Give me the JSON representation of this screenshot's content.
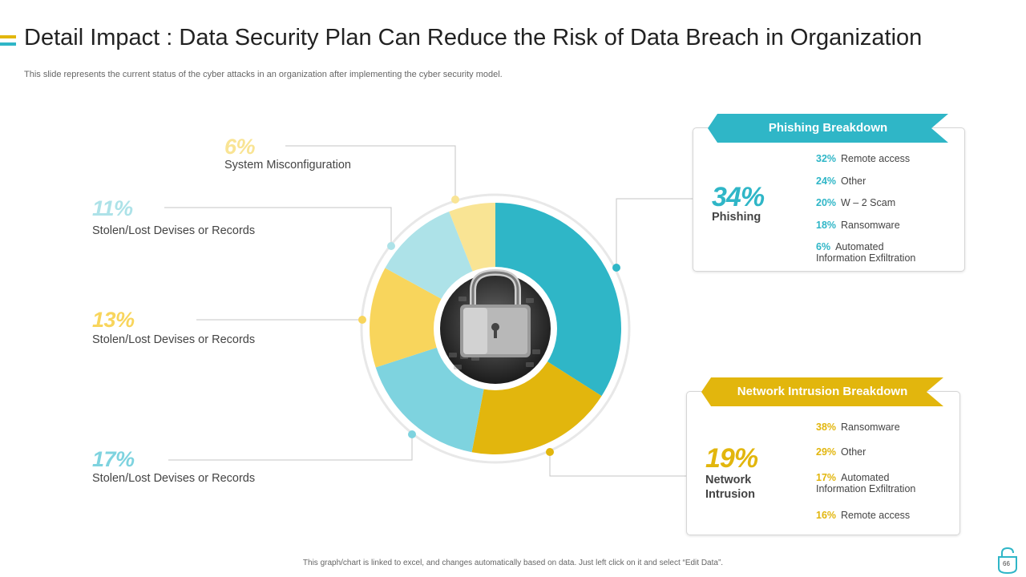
{
  "header": {
    "title": "Detail Impact : Data Security Plan Can Reduce the Risk of Data Breach in Organization",
    "subtitle": "This slide represents the current status of the cyber attacks in an organization after implementing the cyber security model."
  },
  "colors": {
    "teal": "#2fb6c7",
    "light_teal": "#7ed3df",
    "pale_teal": "#ade2e8",
    "gold": "#e2b60d",
    "yellow": "#f8d55c",
    "pale_yellow": "#f9e494"
  },
  "chart_data": {
    "type": "pie",
    "title": "",
    "slices": [
      {
        "label": "Phishing",
        "value": 34,
        "display": "34%",
        "color": "#2fb6c7"
      },
      {
        "label": "Network Intrusion",
        "value": 19,
        "display": "19%",
        "color": "#e2b60d"
      },
      {
        "label": "Stolen/Lost Devises or Records",
        "value": 17,
        "display": "17%",
        "color": "#7ed3df"
      },
      {
        "label": "Stolen/Lost Devises or Records",
        "value": 13,
        "display": "13%",
        "color": "#f8d55c"
      },
      {
        "label": "Stolen/Lost Devises or Records",
        "value": 11,
        "display": "11%",
        "color": "#ade2e8"
      },
      {
        "label": "System Misconfiguration",
        "value": 6,
        "display": "6%",
        "color": "#f9e494"
      }
    ]
  },
  "phishing_breakdown": {
    "title": "Phishing Breakdown",
    "percent": "34%",
    "label": "Phishing",
    "items": [
      {
        "value": "32%",
        "label": "Remote access"
      },
      {
        "value": "24%",
        "label": "Other"
      },
      {
        "value": "20%",
        "label": "W – 2 Scam"
      },
      {
        "value": "18%",
        "label": "Ransomware"
      },
      {
        "value": "6%",
        "label": "Automated",
        "label2": "Information Exfiltration"
      }
    ]
  },
  "network_breakdown": {
    "title": "Network Intrusion Breakdown",
    "percent": "19%",
    "label_line1": "Network",
    "label_line2": "Intrusion",
    "items": [
      {
        "value": "38%",
        "label": "Ransomware"
      },
      {
        "value": "29%",
        "label": "Other"
      },
      {
        "value": "17%",
        "label": "Automated",
        "label2": "Information Exfiltration"
      },
      {
        "value": "16%",
        "label": "Remote access"
      }
    ]
  },
  "footer": {
    "note": "This graph/chart is linked to excel, and changes automatically based on data. Just left click on it and select “Edit Data”.",
    "page_number": "66"
  }
}
